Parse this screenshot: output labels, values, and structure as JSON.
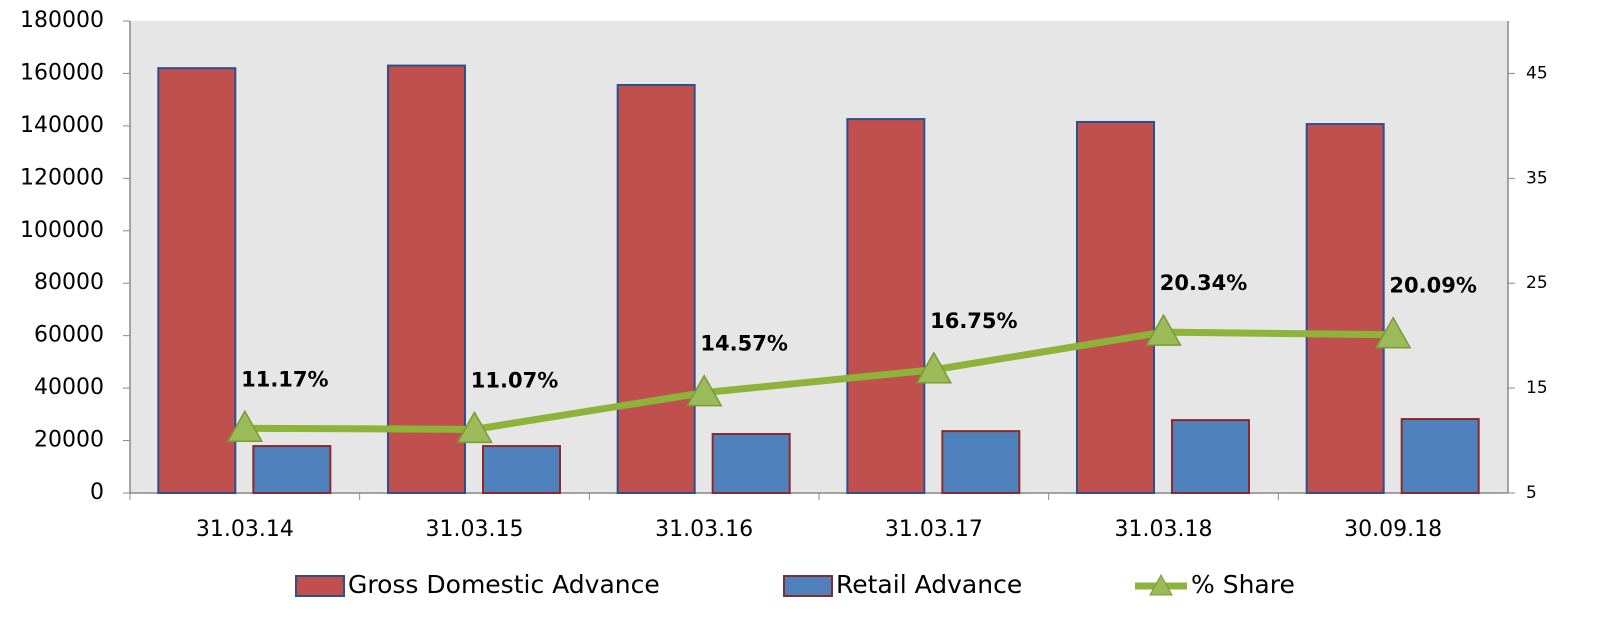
{
  "chart_data": {
    "type": "bar-line",
    "categories": [
      "31.03.14",
      "31.03.15",
      "31.03.16",
      "31.03.17",
      "31.03.18",
      "30.09.18"
    ],
    "series": [
      {
        "name": "Gross Domestic Advance",
        "color": "#c0504d",
        "type": "bar",
        "values": [
          162000,
          163000,
          155600,
          142600,
          141500,
          140700
        ]
      },
      {
        "name": "Retail Advance",
        "color": "#4f81bd",
        "type": "bar",
        "values": [
          17900,
          17900,
          22500,
          23600,
          27800,
          28200
        ]
      },
      {
        "name": "% Share",
        "color": "#8db33a",
        "type": "line",
        "axis": "y2",
        "values": [
          11.17,
          11.07,
          14.57,
          16.75,
          20.34,
          20.09
        ],
        "value_labels": [
          "11.17%",
          "11.07%",
          "14.57%",
          "16.75%",
          "20.34%",
          "20.09%"
        ]
      }
    ],
    "ylim": [
      0,
      180000
    ],
    "yticks": [
      0,
      20000,
      40000,
      60000,
      80000,
      100000,
      120000,
      140000,
      160000,
      180000
    ],
    "y2lim": [
      5,
      50
    ],
    "y2ticks": [
      5,
      15,
      25,
      35,
      45
    ],
    "legend": "bottom"
  }
}
